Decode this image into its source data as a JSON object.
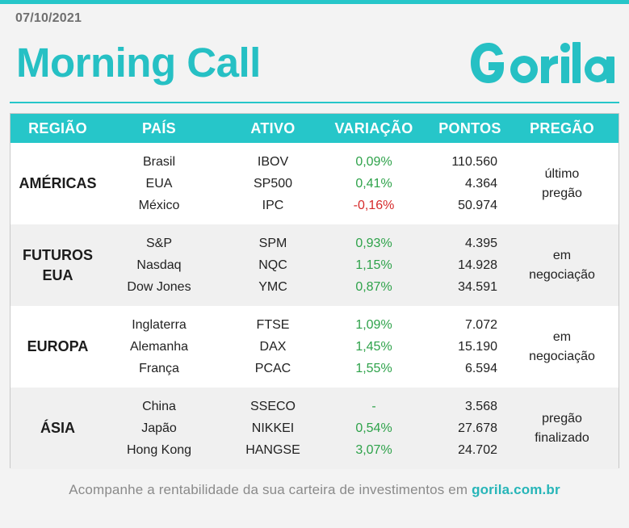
{
  "header": {
    "date": "07/10/2021",
    "title": "Morning Call",
    "logo_text": "Gorila"
  },
  "table": {
    "columns": [
      "REGIÃO",
      "PAÍS",
      "ATIVO",
      "VARIAÇÃO",
      "PONTOS",
      "PREGÃO"
    ],
    "groups": [
      {
        "region_lines": [
          "AMÉRICAS"
        ],
        "rows": [
          {
            "pais": "Brasil",
            "ativo": "IBOV",
            "variacao": "0,09%",
            "sign": "pos",
            "pontos": "110.560"
          },
          {
            "pais": "EUA",
            "ativo": "SP500",
            "variacao": "0,41%",
            "sign": "pos",
            "pontos": "4.364"
          },
          {
            "pais": "México",
            "ativo": "IPC",
            "variacao": "-0,16%",
            "sign": "neg",
            "pontos": "50.974"
          }
        ],
        "pregao_lines": [
          "último",
          "pregão"
        ]
      },
      {
        "region_lines": [
          "FUTUROS",
          "EUA"
        ],
        "rows": [
          {
            "pais": "S&P",
            "ativo": "SPM",
            "variacao": "0,93%",
            "sign": "pos",
            "pontos": "4.395"
          },
          {
            "pais": "Nasdaq",
            "ativo": "NQC",
            "variacao": "1,15%",
            "sign": "pos",
            "pontos": "14.928"
          },
          {
            "pais": "Dow Jones",
            "ativo": "YMC",
            "variacao": "0,87%",
            "sign": "pos",
            "pontos": "34.591"
          }
        ],
        "pregao_lines": [
          "em",
          "negociação"
        ]
      },
      {
        "region_lines": [
          "EUROPA"
        ],
        "rows": [
          {
            "pais": "Inglaterra",
            "ativo": "FTSE",
            "variacao": "1,09%",
            "sign": "pos",
            "pontos": "7.072"
          },
          {
            "pais": "Alemanha",
            "ativo": "DAX",
            "variacao": "1,45%",
            "sign": "pos",
            "pontos": "15.190"
          },
          {
            "pais": "França",
            "ativo": "PCAC",
            "variacao": "1,55%",
            "sign": "pos",
            "pontos": "6.594"
          }
        ],
        "pregao_lines": [
          "em",
          "negociação"
        ]
      },
      {
        "region_lines": [
          "ÁSIA"
        ],
        "rows": [
          {
            "pais": "China",
            "ativo": "SSECO",
            "variacao": "-",
            "sign": "neu",
            "pontos": "3.568"
          },
          {
            "pais": "Japão",
            "ativo": "NIKKEI",
            "variacao": "0,54%",
            "sign": "pos",
            "pontos": "27.678"
          },
          {
            "pais": "Hong Kong",
            "ativo": "HANGSE",
            "variacao": "3,07%",
            "sign": "pos",
            "pontos": "24.702"
          }
        ],
        "pregao_lines": [
          "pregão",
          "finalizado"
        ]
      }
    ]
  },
  "footer": {
    "text": "Acompanhe a rentabilidade da sua carteira de investimentos em ",
    "link": "gorila.com.br"
  },
  "colors": {
    "accent": "#26c6c9",
    "positive": "#2ea24a",
    "negative": "#d62b2b"
  }
}
